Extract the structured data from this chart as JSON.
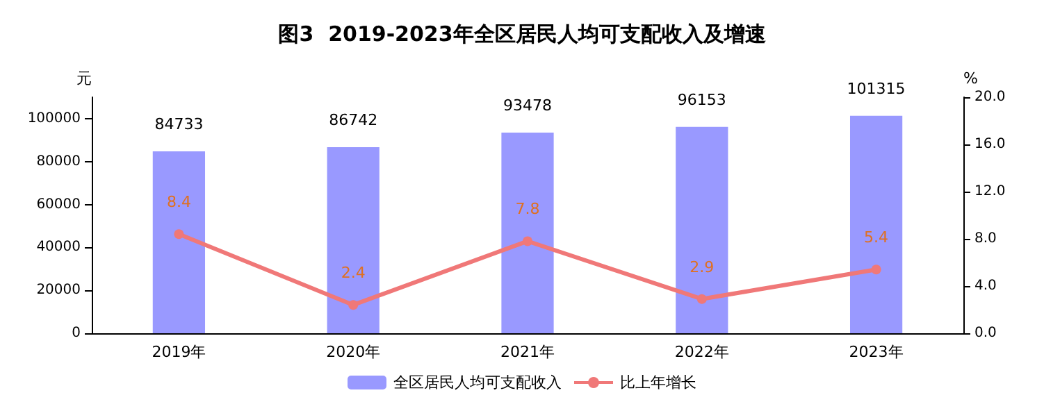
{
  "chart_data": {
    "type": "bar",
    "title": "图3  2019-2023年全区居民人均可支配收入及增速",
    "ylabel": "元",
    "y2label": "%",
    "categories": [
      "2019年",
      "2020年",
      "2021年",
      "2022年",
      "2023年"
    ],
    "series": [
      {
        "name": "全区居民人均可支配收入",
        "color": "#9999ff",
        "values": [
          84733,
          86742,
          93478,
          96153,
          101315
        ]
      },
      {
        "name": "比上年增长",
        "type": "line",
        "axis": "y2",
        "color": "#f07878",
        "values": [
          8.4,
          2.4,
          7.8,
          2.9,
          5.4
        ]
      }
    ],
    "ylim": [
      0,
      110000
    ],
    "yticks": [
      0,
      20000,
      40000,
      60000,
      80000,
      100000
    ],
    "y2lim": [
      0,
      20
    ],
    "y2ticks": [
      {
        "value": 0,
        "label": "0.0"
      },
      {
        "value": 4,
        "label": "4.0"
      },
      {
        "value": 8,
        "label": "8.0"
      },
      {
        "value": 12,
        "label": "12.0"
      },
      {
        "value": 16,
        "label": "16.0"
      },
      {
        "value": 20,
        "label": "20.0"
      }
    ],
    "data_labels": true,
    "legend": "bottom",
    "grid": false,
    "marker": "circle",
    "line_style": "solid"
  }
}
